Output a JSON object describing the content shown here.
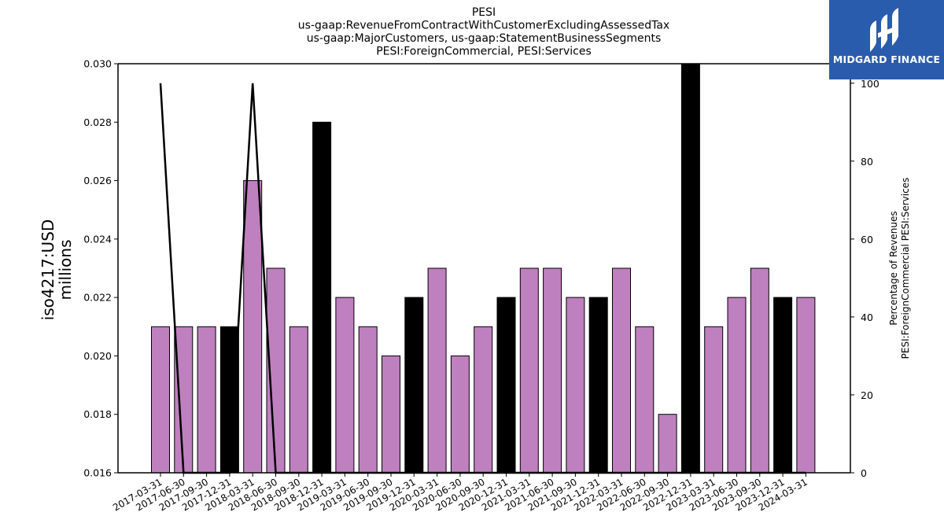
{
  "chart_data": {
    "type": "bar",
    "title_lines": [
      "PESI",
      "us-gaap:RevenueFromContractWithCustomerExcludingAssessedTax",
      "us-gaap:MajorCustomers, us-gaap:StatementBusinessSegments",
      "PESI:ForeignCommercial, PESI:Services"
    ],
    "ylabel_lines": [
      "iso4217:USD",
      "millions"
    ],
    "y2label_lines": [
      "Percentage of Revenues",
      "PESI:ForeignCommercial PESI:Services"
    ],
    "ylim": [
      0.016,
      0.03
    ],
    "yticks": [
      "0.016",
      "0.018",
      "0.020",
      "0.022",
      "0.024",
      "0.026",
      "0.028",
      "0.030"
    ],
    "y2lim": [
      0,
      105
    ],
    "y2ticks": [
      "0",
      "20",
      "40",
      "60",
      "80",
      "100"
    ],
    "categories": [
      "2017-03-31",
      "2017-06-30",
      "2017-09-30",
      "2017-12-31",
      "2018-03-31",
      "2018-06-30",
      "2018-09-30",
      "2018-12-31",
      "2019-03-31",
      "2019-06-30",
      "2019-09-30",
      "2019-12-31",
      "2020-03-31",
      "2020-06-30",
      "2020-09-30",
      "2020-12-31",
      "2021-03-31",
      "2021-06-30",
      "2021-09-30",
      "2021-12-31",
      "2022-03-31",
      "2022-06-30",
      "2022-09-30",
      "2022-12-31",
      "2023-03-31",
      "2023-06-30",
      "2023-09-30",
      "2023-12-31",
      "2024-03-31"
    ],
    "values": [
      0.021,
      0.021,
      0.021,
      0.021,
      0.026,
      0.023,
      0.021,
      0.028,
      0.022,
      0.021,
      0.02,
      0.022,
      0.023,
      0.02,
      0.021,
      0.022,
      0.023,
      0.023,
      0.022,
      0.022,
      0.023,
      0.021,
      0.018,
      0.03,
      0.021,
      0.022,
      0.023,
      0.022,
      0.022
    ],
    "bar_colors": [
      "#bf80bf",
      "#bf80bf",
      "#bf80bf",
      "#000000",
      "#bf80bf",
      "#bf80bf",
      "#bf80bf",
      "#000000",
      "#bf80bf",
      "#bf80bf",
      "#bf80bf",
      "#000000",
      "#bf80bf",
      "#bf80bf",
      "#bf80bf",
      "#000000",
      "#bf80bf",
      "#bf80bf",
      "#bf80bf",
      "#000000",
      "#bf80bf",
      "#bf80bf",
      "#bf80bf",
      "#000000",
      "#bf80bf",
      "#bf80bf",
      "#bf80bf",
      "#000000",
      "#bf80bf"
    ],
    "line_values": [
      100,
      0,
      0,
      0,
      100,
      0,
      0,
      0,
      0,
      0,
      0,
      0,
      0,
      0,
      0,
      0,
      0,
      0,
      0,
      0,
      0,
      0,
      0,
      0,
      0,
      0,
      0,
      0,
      0
    ],
    "line_color": "#000000"
  },
  "logo": {
    "text": "MIDGARD FINANCE",
    "background": "#2a5cad"
  }
}
